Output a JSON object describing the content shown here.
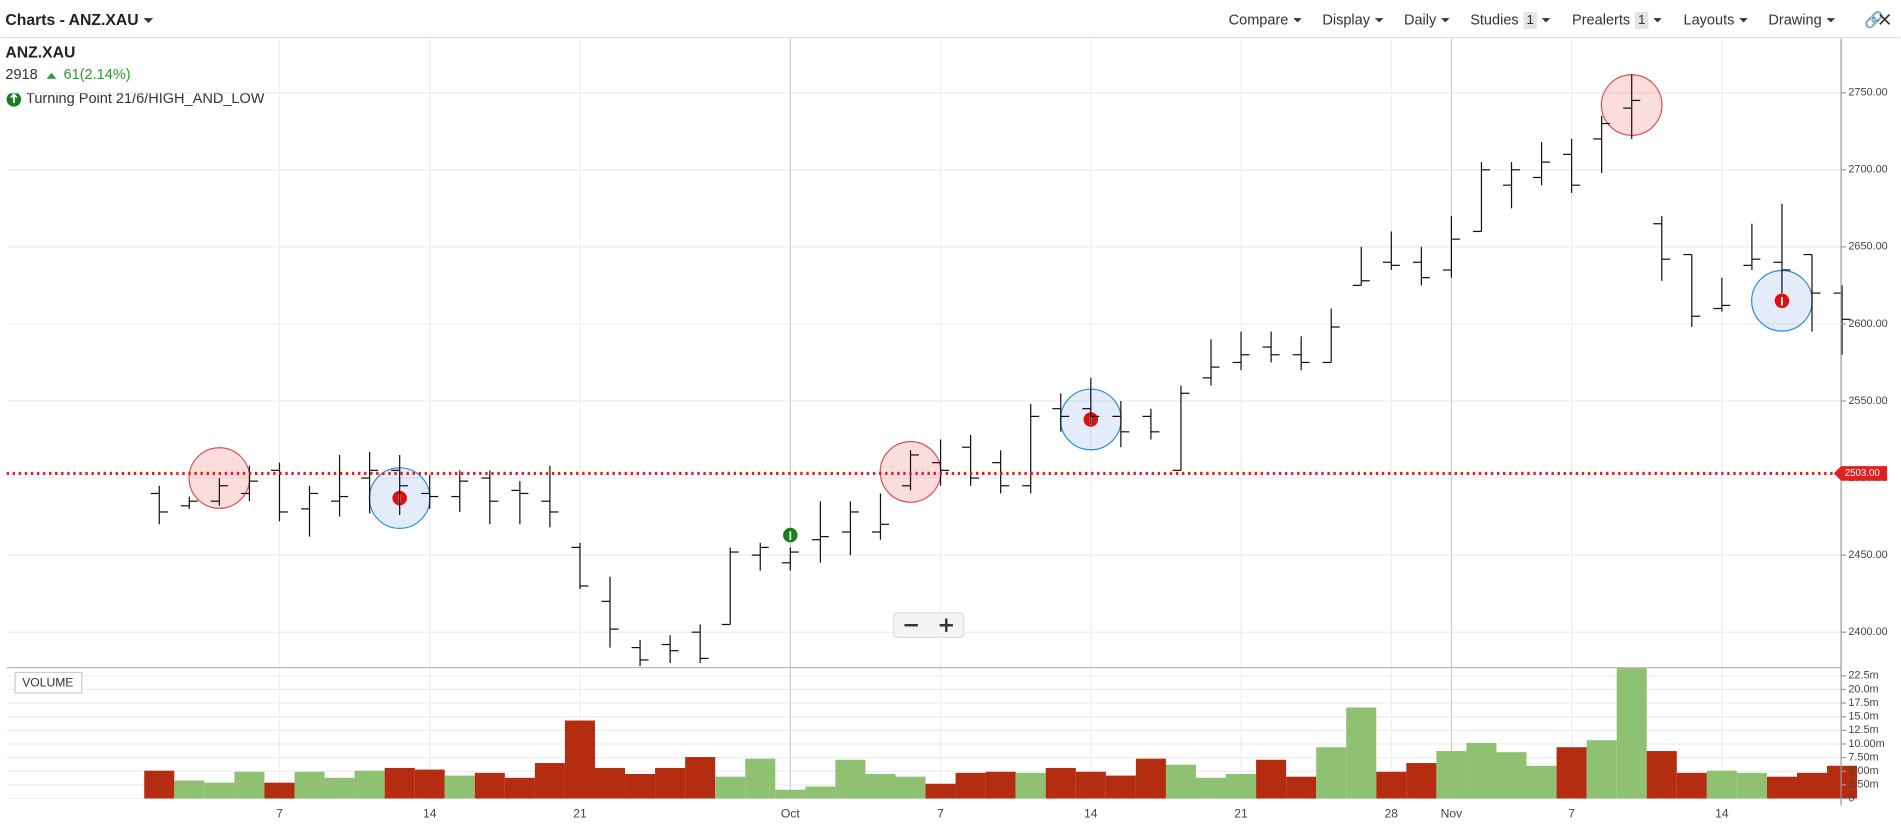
{
  "ui": {
    "title": "Charts - ANZ.XAU",
    "toolbar": [
      {
        "label": "Compare"
      },
      {
        "label": "Display"
      },
      {
        "label": "Daily"
      },
      {
        "label": "Studies",
        "badge": "1"
      },
      {
        "label": "Prealerts",
        "badge": "1"
      },
      {
        "label": "Layouts"
      },
      {
        "label": "Drawing"
      }
    ],
    "symbol": "ANZ.XAU",
    "last": "2918",
    "change": "61(2.14%)",
    "study": "Turning Point 21/6/HIGH_AND_LOW",
    "volume_label": "VOLUME"
  },
  "chart_data": {
    "type": "ohlc",
    "categories": [
      null,
      null,
      null,
      null,
      "7",
      null,
      null,
      null,
      null,
      "14",
      null,
      null,
      null,
      null,
      "21",
      null,
      null,
      null,
      null,
      null,
      null,
      "Oct",
      null,
      null,
      null,
      null,
      "7",
      null,
      null,
      null,
      null,
      "14",
      null,
      null,
      null,
      null,
      "21",
      null,
      null,
      null,
      null,
      "28",
      null,
      "Nov",
      null,
      null,
      null,
      "7",
      null,
      null,
      null,
      null,
      "14",
      null,
      null,
      null,
      null
    ],
    "ohlc": [
      [
        2490,
        2495,
        2470,
        2478
      ],
      [
        2482,
        2488,
        2480,
        2485
      ],
      [
        2485,
        2500,
        2482,
        2495
      ],
      [
        2490,
        2508,
        2485,
        2498
      ],
      [
        2505,
        2510,
        2472,
        2478
      ],
      [
        2480,
        2495,
        2462,
        2490
      ],
      [
        2485,
        2515,
        2475,
        2488
      ],
      [
        2500,
        2517,
        2477,
        2505
      ],
      [
        2505,
        2515,
        2476,
        2495
      ],
      [
        2490,
        2502,
        2480,
        2488
      ],
      [
        2488,
        2505,
        2478,
        2498
      ],
      [
        2500,
        2505,
        2470,
        2485
      ],
      [
        2492,
        2498,
        2470,
        2490
      ],
      [
        2485,
        2508,
        2468,
        2478
      ],
      [
        2455,
        2458,
        2428,
        2430
      ],
      [
        2420,
        2436,
        2390,
        2402
      ],
      [
        2390,
        2395,
        2378,
        2382
      ],
      [
        2392,
        2398,
        2380,
        2388
      ],
      [
        2400,
        2405,
        2380,
        2383
      ],
      [
        2405,
        2455,
        2405,
        2452
      ],
      [
        2450,
        2458,
        2440,
        2455
      ],
      [
        2445,
        2455,
        2440,
        2452
      ],
      [
        2460,
        2485,
        2445,
        2462
      ],
      [
        2465,
        2485,
        2450,
        2478
      ],
      [
        2465,
        2490,
        2460,
        2470
      ],
      [
        2495,
        2518,
        2492,
        2515
      ],
      [
        2510,
        2525,
        2495,
        2505
      ],
      [
        2520,
        2528,
        2495,
        2500
      ],
      [
        2510,
        2518,
        2490,
        2495
      ],
      [
        2495,
        2548,
        2490,
        2540
      ],
      [
        2545,
        2555,
        2530,
        2540
      ],
      [
        2545,
        2565,
        2535,
        2540
      ],
      [
        2540,
        2550,
        2520,
        2530
      ],
      [
        2540,
        2545,
        2525,
        2530
      ],
      [
        2505,
        2560,
        2505,
        2555
      ],
      [
        2565,
        2590,
        2560,
        2572
      ],
      [
        2575,
        2595,
        2570,
        2580
      ],
      [
        2585,
        2595,
        2575,
        2580
      ],
      [
        2580,
        2592,
        2570,
        2575
      ],
      [
        2575,
        2610,
        2575,
        2598
      ],
      [
        2625,
        2650,
        2625,
        2628
      ],
      [
        2640,
        2660,
        2635,
        2638
      ],
      [
        2640,
        2650,
        2625,
        2630
      ],
      [
        2635,
        2670,
        2630,
        2655
      ],
      [
        2660,
        2705,
        2660,
        2700
      ],
      [
        2690,
        2705,
        2675,
        2700
      ],
      [
        2695,
        2718,
        2690,
        2705
      ],
      [
        2710,
        2720,
        2685,
        2690
      ],
      [
        2720,
        2735,
        2698,
        2730
      ],
      [
        2740,
        2762,
        2720,
        2745
      ],
      [
        2665,
        2670,
        2628,
        2642
      ],
      [
        2645,
        2645,
        2598,
        2605
      ],
      [
        2610,
        2630,
        2608,
        2612
      ],
      [
        2638,
        2665,
        2635,
        2642
      ],
      [
        2640,
        2678,
        2620,
        2635
      ],
      [
        2645,
        2645,
        2595,
        2620
      ],
      [
        2620,
        2625,
        2580,
        2603
      ]
    ],
    "ylim": [
      2377,
      2785
    ],
    "yticks": [
      {
        "value": 2400,
        "label": "2400.00"
      },
      {
        "value": 2450,
        "label": "2450.00"
      },
      {
        "value": 2500,
        "label": "2500.00"
      },
      {
        "value": 2550,
        "label": "2550.00"
      },
      {
        "value": 2600,
        "label": "2600.00"
      },
      {
        "value": 2650,
        "label": "2650.00"
      },
      {
        "value": 2700,
        "label": "2700.00"
      },
      {
        "value": 2750,
        "label": "2750.00"
      }
    ],
    "price_line": {
      "value": 2503,
      "label": "2503.00",
      "color": "#e02020"
    },
    "signals": [
      {
        "bar": 2,
        "value": 2500,
        "kind": "high"
      },
      {
        "bar": 25,
        "value": 2504,
        "kind": "high"
      },
      {
        "bar": 49,
        "value": 2742,
        "kind": "high"
      },
      {
        "bar": 8,
        "value": 2487,
        "kind": "low"
      },
      {
        "bar": 31,
        "value": 2538,
        "kind": "low"
      },
      {
        "bar": 54,
        "value": 2615,
        "kind": "low"
      }
    ],
    "entry": {
      "bar": 21,
      "value": 2463
    },
    "up_color": "#8fc172",
    "down_color": "#b52d10",
    "volume": {
      "values": [
        5.1,
        3.3,
        2.9,
        4.9,
        2.9,
        4.9,
        3.8,
        5.1,
        5.6,
        5.3,
        4.2,
        4.7,
        3.8,
        6.5,
        14.3,
        5.6,
        4.5,
        5.6,
        7.6,
        4.0,
        7.3,
        1.6,
        2.2,
        7.1,
        4.5,
        4.0,
        2.7,
        4.7,
        4.9,
        4.7,
        5.6,
        4.9,
        4.2,
        7.3,
        6.2,
        3.8,
        4.5,
        7.1,
        4.0,
        9.4,
        16.7,
        4.9,
        6.5,
        8.7,
        10.2,
        8.5,
        6.0,
        9.4,
        10.7,
        24.0,
        8.7,
        4.7,
        5.1,
        4.7,
        4.0,
        4.7,
        6.0
      ],
      "ylim": [
        0,
        24
      ],
      "yticks": [
        0,
        {
          "value": 2.5,
          "label": "2.50m"
        },
        {
          "value": 5,
          "label": "5.00m"
        },
        {
          "value": 7.5,
          "label": "7.50m"
        },
        {
          "value": 10,
          "label": "10.00m"
        },
        {
          "value": 12.5,
          "label": "12.5m"
        },
        {
          "value": 15,
          "label": "15.0m"
        },
        {
          "value": 17.5,
          "label": "17.5m"
        },
        {
          "value": 20,
          "label": "20.0m"
        },
        {
          "value": 22.5,
          "label": "22.5m"
        }
      ]
    },
    "grid": true
  }
}
